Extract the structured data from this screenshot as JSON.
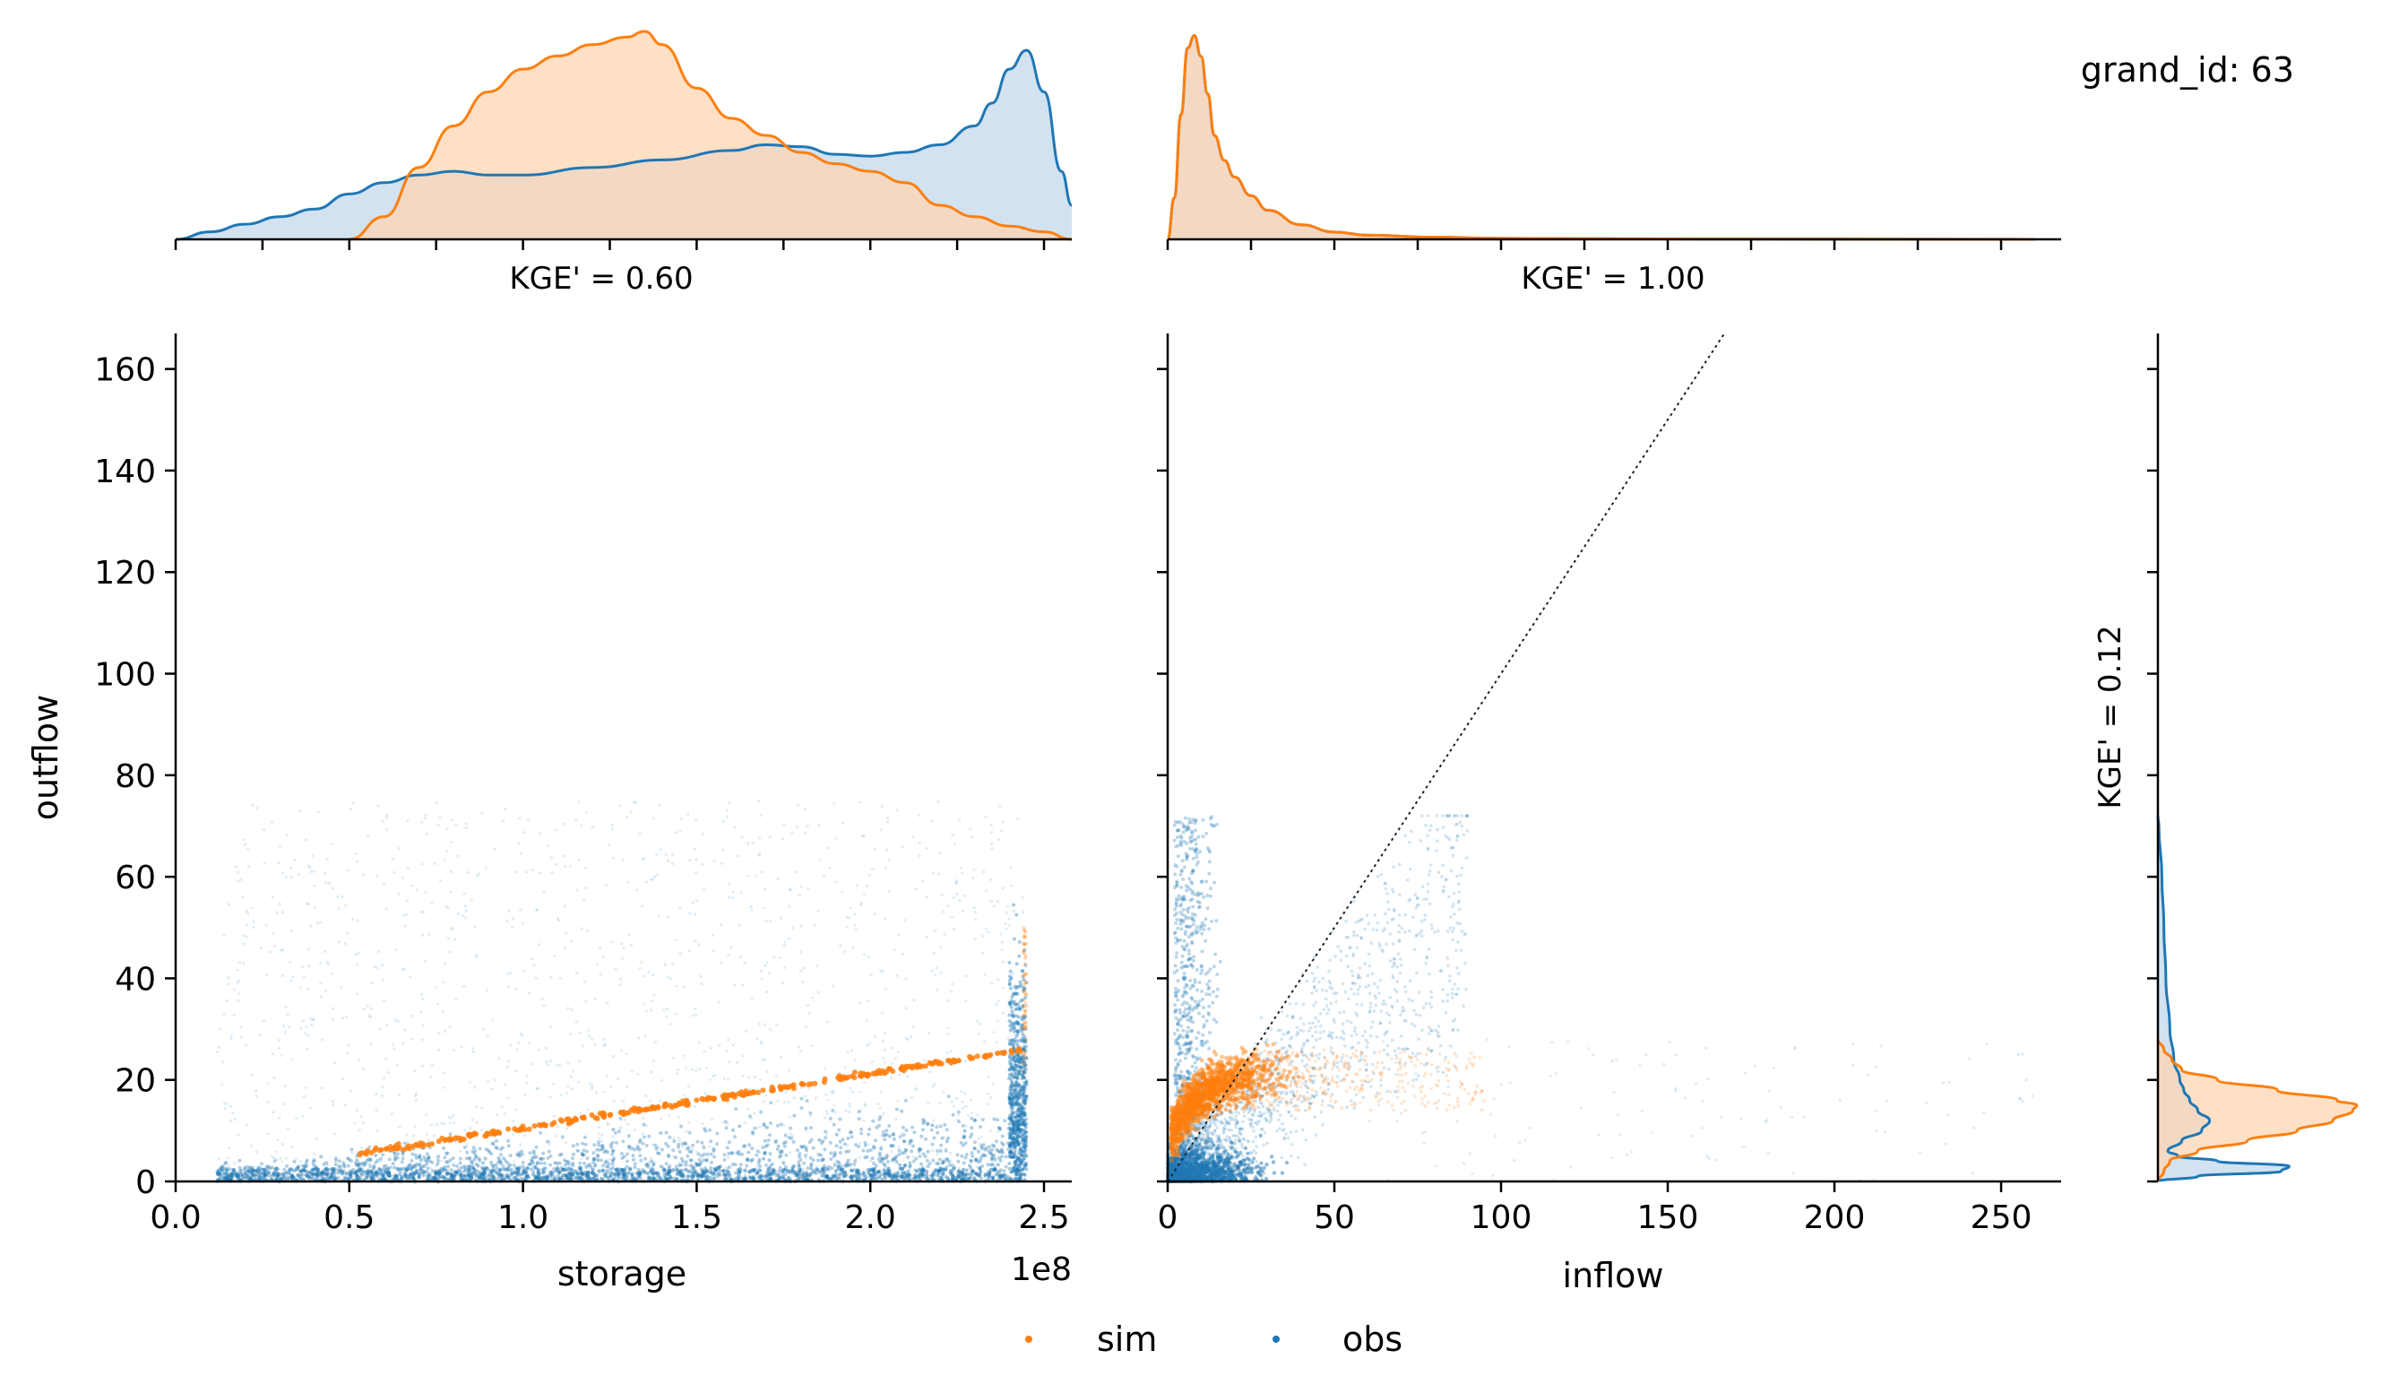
{
  "title": "grand_id: 63",
  "colors": {
    "sim": "#ff7f0e",
    "obs": "#1f77b4",
    "overlap": "#c4c4bc",
    "sim_fill": "#fdd6b4",
    "obs_fill": "#c3d8ec"
  },
  "chart_data": [
    {
      "id": "storage-outflow",
      "type": "scatter",
      "xlabel": "storage",
      "ylabel": "outflow",
      "x_offset_text": "1e8",
      "xlim": [
        0.0,
        2.58
      ],
      "ylim": [
        0,
        167
      ],
      "x_ticks": [
        0.0,
        0.5,
        1.0,
        1.5,
        2.0,
        2.5
      ],
      "x_tick_labels": [
        "0.0",
        "0.5",
        "1.0",
        "1.5",
        "2.0",
        "2.5"
      ],
      "y_ticks": [
        0,
        20,
        40,
        60,
        80,
        100,
        120,
        140,
        160
      ],
      "y_tick_labels": [
        "0",
        "20",
        "40",
        "60",
        "80",
        "100",
        "120",
        "140",
        "160"
      ],
      "x_scale_note": "storage values in units of 1e8",
      "series": [
        {
          "name": "sim",
          "kind": "line",
          "x": [
            0.53,
            2.45
          ],
          "y": [
            5.5,
            26
          ]
        },
        {
          "name": "obs",
          "kind": "cloud",
          "x_range": [
            0.12,
            2.45
          ],
          "y_range": [
            0,
            75
          ]
        }
      ]
    },
    {
      "id": "inflow-outflow",
      "type": "scatter",
      "xlabel": "inflow",
      "xlim": [
        0,
        268
      ],
      "ylim": [
        0,
        167
      ],
      "x_ticks": [
        0,
        50,
        100,
        150,
        200,
        250
      ],
      "x_tick_labels": [
        "0",
        "50",
        "100",
        "150",
        "200",
        "250"
      ],
      "reference_line": {
        "x": [
          0,
          167
        ],
        "y": [
          0,
          167
        ]
      },
      "series": [
        {
          "name": "sim",
          "kind": "cloud",
          "x_range": [
            0,
            90
          ],
          "y_range": [
            5,
            27
          ]
        },
        {
          "name": "obs",
          "kind": "cloud",
          "x_range": [
            0,
            260
          ],
          "y_range": [
            0,
            72
          ]
        }
      ]
    },
    {
      "id": "storage-kde",
      "type": "area",
      "annotation": "KGE' = 0.60",
      "xlim": [
        0.0,
        2.58
      ],
      "x_ticks": [
        0.0,
        0.5,
        1.0,
        1.5,
        2.0,
        2.5
      ],
      "series": [
        {
          "name": "sim",
          "x": [
            0.5,
            0.6,
            0.7,
            0.8,
            0.9,
            1.0,
            1.1,
            1.2,
            1.3,
            1.35,
            1.4,
            1.5,
            1.6,
            1.7,
            1.8,
            1.9,
            2.0,
            2.1,
            2.2,
            2.3,
            2.4,
            2.5,
            2.58
          ],
          "y": [
            0.0,
            0.12,
            0.38,
            0.6,
            0.78,
            0.9,
            0.97,
            1.03,
            1.07,
            1.1,
            1.03,
            0.8,
            0.64,
            0.55,
            0.46,
            0.4,
            0.36,
            0.3,
            0.18,
            0.12,
            0.07,
            0.04,
            0.0
          ]
        },
        {
          "name": "obs",
          "x": [
            0.0,
            0.1,
            0.2,
            0.3,
            0.4,
            0.5,
            0.6,
            0.7,
            0.8,
            0.9,
            1.0,
            1.2,
            1.4,
            1.6,
            1.7,
            1.8,
            1.9,
            2.0,
            2.1,
            2.2,
            2.3,
            2.35,
            2.4,
            2.45,
            2.5,
            2.55,
            2.58
          ],
          "y": [
            0.0,
            0.04,
            0.08,
            0.12,
            0.16,
            0.24,
            0.3,
            0.34,
            0.36,
            0.34,
            0.34,
            0.38,
            0.42,
            0.47,
            0.5,
            0.49,
            0.45,
            0.44,
            0.46,
            0.5,
            0.6,
            0.72,
            0.9,
            1.0,
            0.78,
            0.36,
            0.18
          ]
        }
      ]
    },
    {
      "id": "inflow-kde",
      "type": "area",
      "annotation": "KGE' = 1.00",
      "xlim": [
        0,
        268
      ],
      "x_ticks": [
        0,
        50,
        100,
        150,
        200,
        250
      ],
      "series": [
        {
          "name": "sim",
          "x": [
            0,
            2,
            4,
            6,
            8,
            10,
            12,
            14,
            17,
            20,
            25,
            30,
            40,
            50,
            60,
            80,
            100,
            150,
            200,
            260
          ],
          "y": [
            0.0,
            0.2,
            0.6,
            0.92,
            0.98,
            0.88,
            0.7,
            0.5,
            0.38,
            0.3,
            0.21,
            0.14,
            0.07,
            0.035,
            0.02,
            0.01,
            0.005,
            0.002,
            0.001,
            0.0
          ]
        },
        {
          "name": "obs",
          "x": [
            0,
            2,
            4,
            6,
            8,
            10,
            12,
            14,
            17,
            20,
            25,
            30,
            40,
            50,
            60,
            80,
            100,
            150,
            200,
            260
          ],
          "y": [
            0.0,
            0.2,
            0.6,
            0.92,
            0.98,
            0.88,
            0.7,
            0.5,
            0.38,
            0.3,
            0.21,
            0.14,
            0.07,
            0.035,
            0.02,
            0.01,
            0.005,
            0.002,
            0.001,
            0.0
          ]
        }
      ]
    },
    {
      "id": "outflow-kde",
      "type": "area",
      "annotation": "KGE' = 0.12",
      "ylim": [
        0,
        167
      ],
      "series": [
        {
          "name": "sim",
          "y": [
            0,
            2,
            4,
            6,
            8,
            10,
            12,
            14,
            15,
            16,
            18,
            20,
            22,
            24,
            26,
            28
          ],
          "x": [
            0.0,
            0.03,
            0.06,
            0.2,
            0.45,
            0.7,
            0.88,
            0.98,
            1.0,
            0.9,
            0.6,
            0.3,
            0.12,
            0.07,
            0.03,
            0.0
          ]
        },
        {
          "name": "obs",
          "y": [
            0,
            1,
            2,
            3,
            4,
            5,
            6,
            8,
            10,
            12,
            14,
            16,
            18,
            20,
            24,
            30,
            40,
            50,
            60,
            70,
            72
          ],
          "x": [
            0.0,
            0.2,
            0.62,
            0.66,
            0.3,
            0.1,
            0.05,
            0.12,
            0.22,
            0.26,
            0.2,
            0.16,
            0.13,
            0.11,
            0.08,
            0.06,
            0.04,
            0.03,
            0.02,
            0.005,
            0.0
          ]
        }
      ]
    }
  ],
  "legend": {
    "items": [
      {
        "name": "sim"
      },
      {
        "name": "obs"
      }
    ]
  }
}
